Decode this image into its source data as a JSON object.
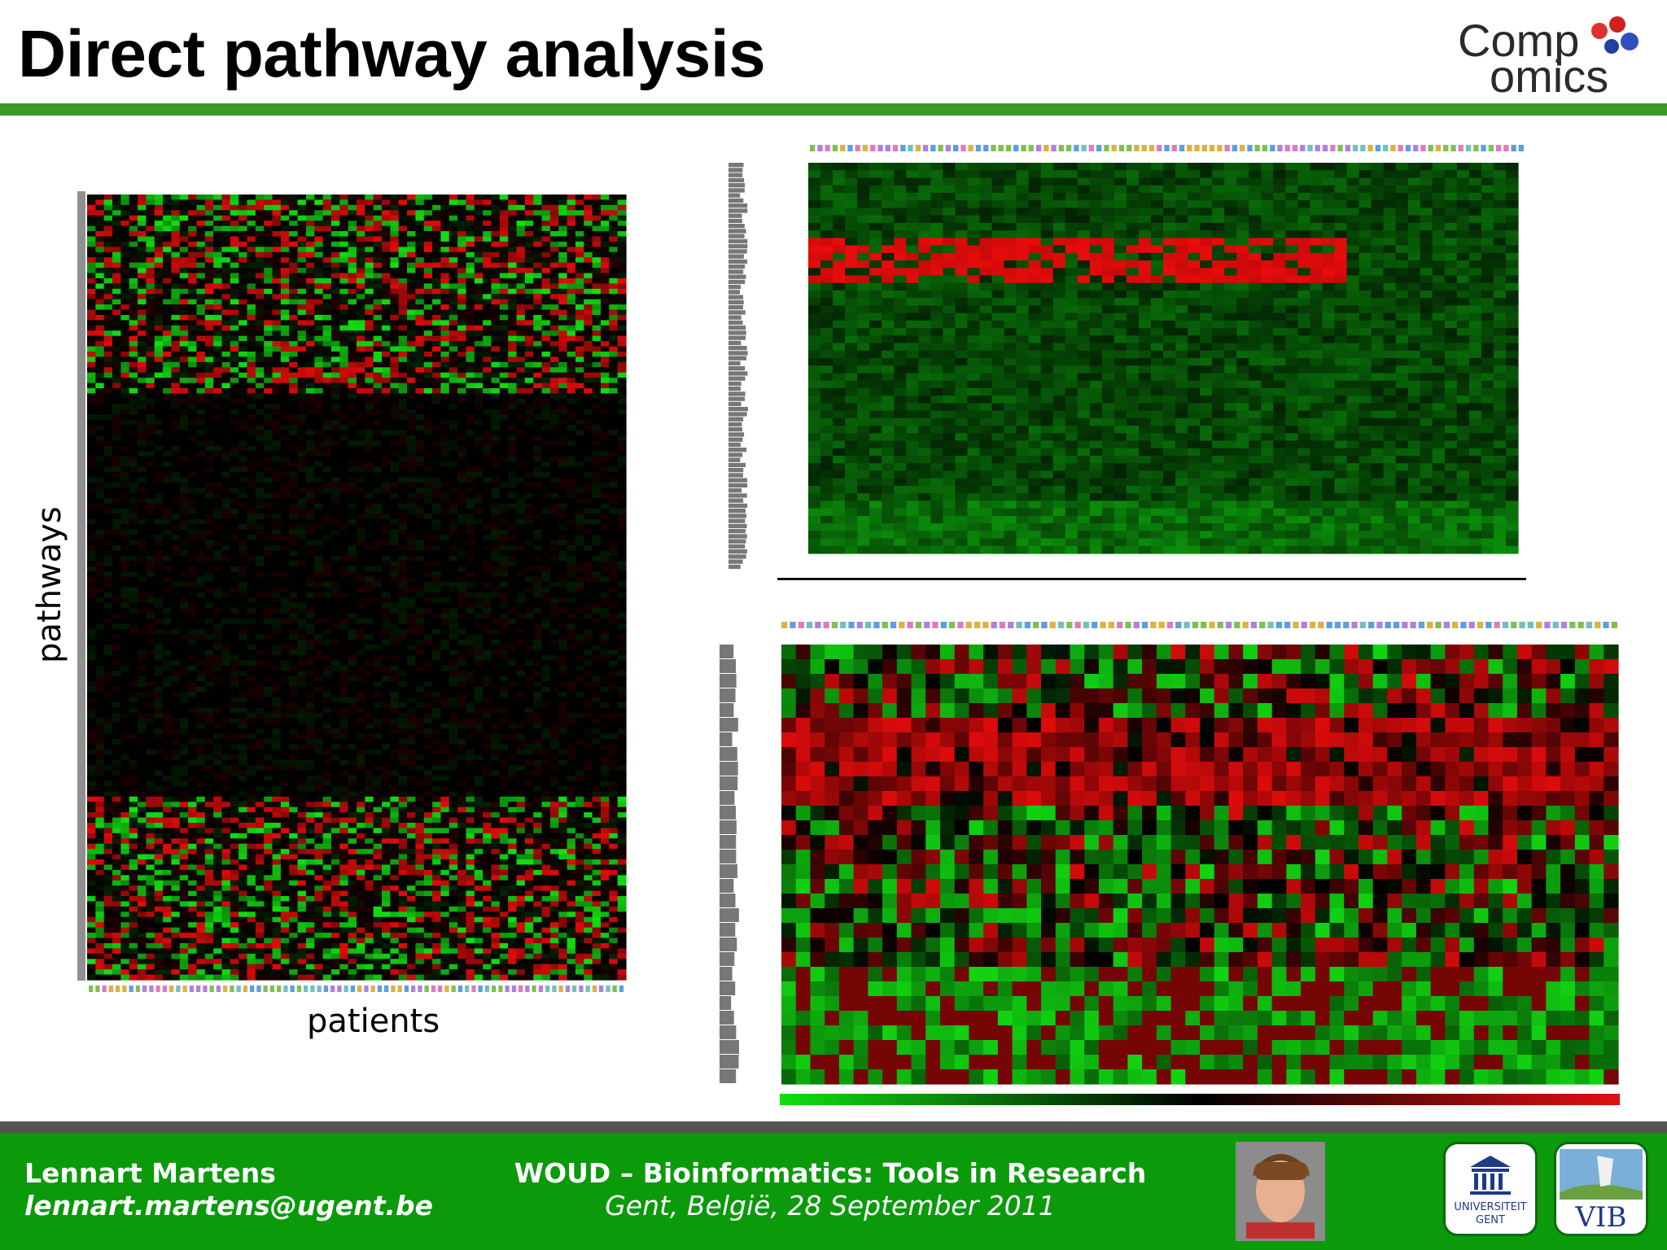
{
  "slide": {
    "title": "Direct pathway analysis",
    "logo_line1": "Comp",
    "logo_line2": "omics"
  },
  "left_figure": {
    "y_axis_label": "pathways",
    "x_axis_label": "patients"
  },
  "colors": {
    "accent_green": "#3a9a24",
    "footer_green": "#0a9a0a",
    "heat_red": "#e01010",
    "heat_green": "#10e010",
    "heat_black": "#000000"
  },
  "footer": {
    "author_name": "Lennart Martens",
    "author_email": "lennart.martens@ugent.be",
    "event_title": "WOUD – Bioinformatics: Tools in Research",
    "event_place_date": "Gent, België, 28 September 2011",
    "ugent_line1": "UNIVERSITEIT",
    "ugent_line2": "GENT",
    "vib_text": "VIB"
  },
  "icons": {
    "photo": "presenter-photo",
    "ugent": "ugent-logo",
    "vib": "vib-logo"
  }
}
